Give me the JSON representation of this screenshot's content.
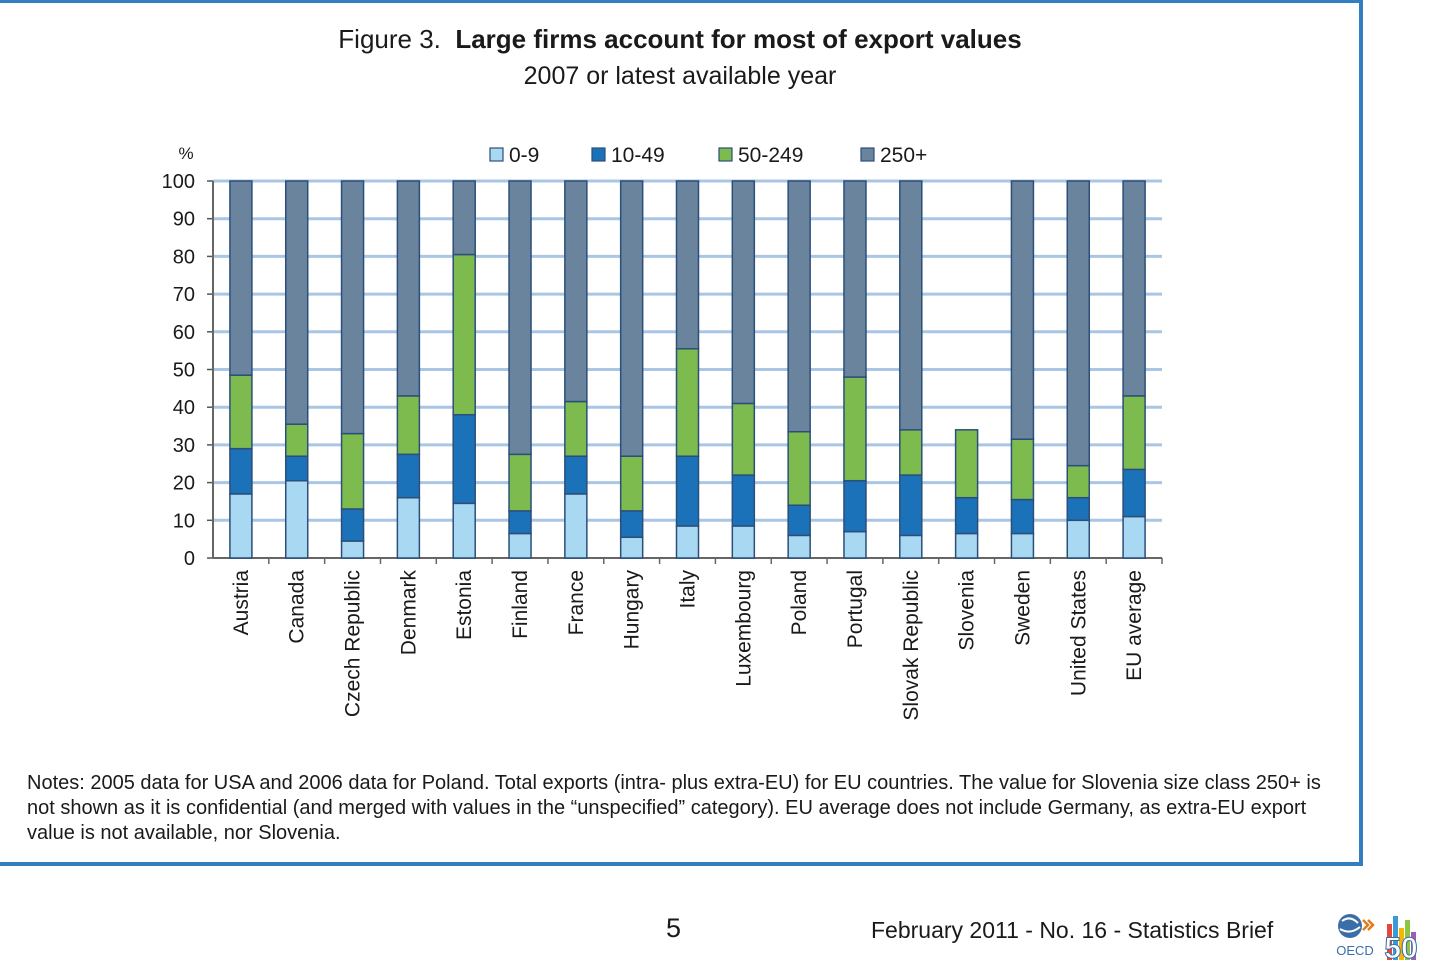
{
  "figure": {
    "number_label": "Figure 3.",
    "title": "Large firms account for most of export values",
    "subtitle": "2007 or latest available year"
  },
  "colors": {
    "s0_9": "#a9d8f2",
    "s10_49": "#1c72b8",
    "s50_249": "#7dbb4f",
    "s250": "#6b849e",
    "grid": "#a9c6e4",
    "outline": "#2b4f7a",
    "frame": "#2f7fc1"
  },
  "chart_data": {
    "type": "bar",
    "stacked": true,
    "title": "Large firms account for most of export values",
    "subtitle": "2007 or latest available year",
    "ylabel": "%",
    "xlabel": "",
    "ylim": [
      0,
      100
    ],
    "yticks": [
      0,
      10,
      20,
      30,
      40,
      50,
      60,
      70,
      80,
      90,
      100
    ],
    "grid": true,
    "legend_position": "top",
    "categories": [
      "Austria",
      "Canada",
      "Czech Republic",
      "Denmark",
      "Estonia",
      "Finland",
      "France",
      "Hungary",
      "Italy",
      "Luxembourg",
      "Poland",
      "Portugal",
      "Slovak Republic",
      "Slovenia",
      "Sweden",
      "United States",
      "EU average"
    ],
    "series": [
      {
        "name": "0-9",
        "values": [
          17,
          20.5,
          4.5,
          16,
          14.5,
          6.5,
          17,
          5.5,
          8.5,
          8.5,
          6,
          7,
          6,
          6.5,
          6.5,
          10,
          11
        ]
      },
      {
        "name": "10-49",
        "values": [
          12,
          6.5,
          8.5,
          11.5,
          23.5,
          6,
          10,
          7,
          18.5,
          13.5,
          8,
          13.5,
          16,
          9.5,
          9,
          6,
          12.5
        ]
      },
      {
        "name": "50-249",
        "values": [
          19.5,
          8.5,
          20,
          15.5,
          42.5,
          15,
          14.5,
          14.5,
          28.5,
          19,
          19.5,
          27.5,
          12,
          18,
          16,
          8.5,
          19.5
        ]
      },
      {
        "name": "250+",
        "values": [
          51.5,
          64.5,
          67,
          57,
          19.5,
          72.5,
          58.5,
          73,
          44.5,
          59,
          66.5,
          52,
          66,
          0,
          68.5,
          75.5,
          57
        ]
      }
    ]
  },
  "notes": "Notes: 2005 data for USA and 2006 data for Poland. Total exports (intra- plus extra-EU)  for EU countries. The value for Slovenia size class 250+ is not shown as it is confidential (and merged with values in the “unspecified” category). EU average does not include Germany, as extra-EU export value is not available, nor Slovenia.",
  "footer": {
    "page_number": "5",
    "publication": "February 2011 - No. 16 - Statistics Brief",
    "logo_text": "OECD",
    "logo_number": "50"
  }
}
